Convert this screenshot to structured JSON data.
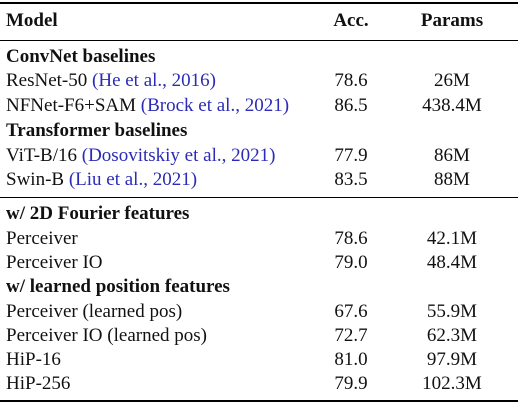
{
  "header": {
    "model": "Model",
    "acc": "Acc.",
    "params": "Params"
  },
  "groups": [
    {
      "title": "ConvNet baselines",
      "rows": [
        {
          "model": "ResNet-50",
          "cite": "(He et al., 2016)",
          "acc": "78.6",
          "params": "26M"
        },
        {
          "model": "NFNet-F6+SAM",
          "cite": "(Brock et al., 2021)",
          "acc": "86.5",
          "params": "438.4M"
        }
      ]
    },
    {
      "title": "Transformer baselines",
      "rows": [
        {
          "model": "ViT-B/16",
          "cite": "(Dosovitskiy et al., 2021)",
          "acc": "77.9",
          "params": "86M"
        },
        {
          "model": "Swin-B",
          "cite": "(Liu et al., 2021)",
          "acc": "83.5",
          "params": "88M"
        }
      ]
    },
    {
      "title": "w/ 2D Fourier features",
      "rows": [
        {
          "model": "Perceiver",
          "acc": "78.6",
          "params": "42.1M"
        },
        {
          "model": "Perceiver IO",
          "acc": "79.0",
          "params": "48.4M"
        }
      ]
    },
    {
      "title": "w/ learned position features",
      "rows": [
        {
          "model": "Perceiver (learned pos)",
          "acc": "67.6",
          "params": "55.9M"
        },
        {
          "model": "Perceiver IO (learned pos)",
          "acc": "72.7",
          "params": "62.3M"
        },
        {
          "model": "HiP-16",
          "acc": "81.0",
          "params": "97.9M"
        },
        {
          "model": "HiP-256",
          "acc": "79.9",
          "params": "102.3M"
        }
      ]
    }
  ]
}
